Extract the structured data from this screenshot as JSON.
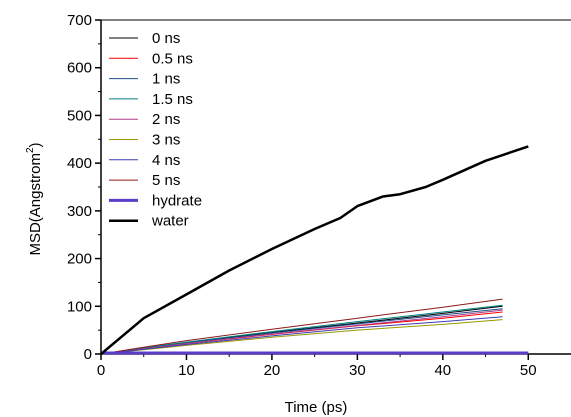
{
  "chart_data": {
    "type": "line",
    "title": "",
    "xlabel": "Time (ps)",
    "ylabel_main": "MSD(Angstrom",
    "ylabel_sup": "2",
    "ylabel_close": ")",
    "xlim": [
      0,
      55
    ],
    "ylim": [
      0,
      700
    ],
    "x_ticks": [
      0,
      10,
      20,
      30,
      40,
      50
    ],
    "y_ticks": [
      0,
      100,
      200,
      300,
      400,
      500,
      600,
      700
    ],
    "grid": false,
    "legend_position": "top-left",
    "series": [
      {
        "name": "0 ns",
        "color": "#000000",
        "width": 1,
        "x": [
          0,
          5,
          10,
          20,
          30,
          40,
          47
        ],
        "y": [
          0,
          12,
          24,
          45,
          65,
          85,
          100
        ]
      },
      {
        "name": "0.5 ns",
        "color": "#ff0000",
        "width": 1,
        "x": [
          0,
          5,
          10,
          20,
          30,
          40,
          47
        ],
        "y": [
          0,
          11,
          22,
          41,
          59,
          75,
          88
        ]
      },
      {
        "name": "1 ns",
        "color": "#1f4e8c",
        "width": 1,
        "x": [
          0,
          5,
          10,
          20,
          30,
          40,
          47
        ],
        "y": [
          0,
          12,
          23,
          44,
          63,
          82,
          95
        ]
      },
      {
        "name": "1.5 ns",
        "color": "#008080",
        "width": 1,
        "x": [
          0,
          5,
          10,
          20,
          30,
          40,
          47
        ],
        "y": [
          0,
          13,
          25,
          47,
          68,
          88,
          102
        ]
      },
      {
        "name": "2 ns",
        "color": "#b03c8c",
        "width": 1,
        "x": [
          0,
          5,
          10,
          20,
          30,
          40,
          47
        ],
        "y": [
          0,
          11,
          22,
          42,
          60,
          78,
          92
        ]
      },
      {
        "name": "3 ns",
        "color": "#9a9a00",
        "width": 1,
        "x": [
          0,
          5,
          10,
          20,
          30,
          40,
          47
        ],
        "y": [
          0,
          9,
          18,
          35,
          50,
          62,
          72
        ]
      },
      {
        "name": "4 ns",
        "color": "#3c3cb4",
        "width": 1,
        "x": [
          0,
          5,
          10,
          20,
          30,
          40,
          47
        ],
        "y": [
          0,
          10,
          20,
          38,
          55,
          68,
          78
        ]
      },
      {
        "name": "5 ns",
        "color": "#8b1a1a",
        "width": 1,
        "x": [
          0,
          5,
          10,
          20,
          30,
          40,
          47
        ],
        "y": [
          0,
          14,
          28,
          52,
          75,
          98,
          115
        ]
      },
      {
        "name": "hydrate",
        "color": "#5a3cc8",
        "width": 3,
        "x": [
          0,
          10,
          20,
          30,
          40,
          50
        ],
        "y": [
          2,
          2,
          2,
          2,
          2,
          2
        ]
      },
      {
        "name": "water",
        "color": "#000000",
        "width": 2.5,
        "x": [
          0,
          5,
          10,
          15,
          20,
          25,
          28,
          30,
          33,
          35,
          38,
          40,
          45,
          50
        ],
        "y": [
          0,
          75,
          125,
          175,
          220,
          262,
          285,
          310,
          330,
          335,
          350,
          365,
          405,
          435
        ]
      }
    ]
  }
}
